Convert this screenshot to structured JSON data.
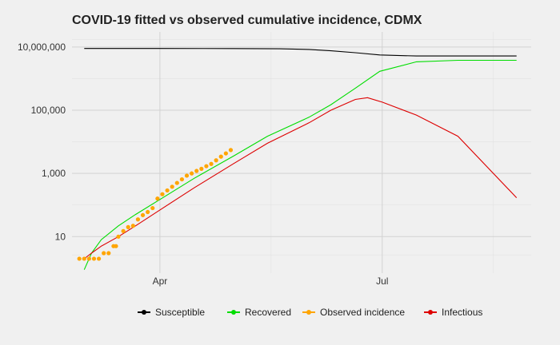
{
  "chart_data": {
    "type": "line",
    "title": "COVID-19 fitted vs observed cumulative incidence, CDMX",
    "xlabel": "",
    "ylabel": "",
    "y_scale": "log10",
    "ylim": [
      0.7,
      30000000
    ],
    "xlim": [
      "2020-02-25",
      "2020-08-31"
    ],
    "x_ticks": [
      {
        "date": "2020-04-01",
        "label": "Apr"
      },
      {
        "date": "2020-07-01",
        "label": "Jul"
      }
    ],
    "y_ticks": [
      {
        "value": 10,
        "label": "10"
      },
      {
        "value": 1000,
        "label": "1,000"
      },
      {
        "value": 100000,
        "label": "100,000"
      },
      {
        "value": 10000000,
        "label": "10,000,000"
      }
    ],
    "grid": true,
    "legend_position": "bottom",
    "series": [
      {
        "name": "Susceptible",
        "color": "#000000",
        "style": "line",
        "x": [
          "2020-03-01",
          "2020-04-01",
          "2020-05-01",
          "2020-05-20",
          "2020-06-01",
          "2020-06-10",
          "2020-06-20",
          "2020-06-30",
          "2020-07-15",
          "2020-08-01",
          "2020-08-25"
        ],
        "y": [
          9000000,
          9000000,
          8950000,
          8800000,
          8400000,
          7600000,
          6600000,
          5600000,
          5200000,
          5200000,
          5200000
        ]
      },
      {
        "name": "Recovered",
        "color": "#00dd00",
        "style": "line",
        "x": [
          "2020-03-01",
          "2020-03-04",
          "2020-03-08",
          "2020-03-15",
          "2020-03-22",
          "2020-04-01",
          "2020-04-15",
          "2020-05-01",
          "2020-05-15",
          "2020-06-01",
          "2020-06-10",
          "2020-06-20",
          "2020-06-30",
          "2020-07-15",
          "2020-08-01",
          "2020-08-25"
        ],
        "y": [
          0.9,
          3,
          8,
          22,
          50,
          150,
          700,
          3500,
          15000,
          60000,
          150000,
          500000,
          1700000,
          3400000,
          3800000,
          3800000
        ]
      },
      {
        "name": "Infectious",
        "color": "#dd0000",
        "style": "line",
        "x": [
          "2020-03-01",
          "2020-03-04",
          "2020-03-08",
          "2020-03-15",
          "2020-03-22",
          "2020-04-01",
          "2020-04-15",
          "2020-05-01",
          "2020-05-15",
          "2020-06-01",
          "2020-06-10",
          "2020-06-20",
          "2020-06-25",
          "2020-07-01",
          "2020-07-15",
          "2020-08-01",
          "2020-08-25"
        ],
        "y": [
          2,
          3,
          5,
          10,
          22,
          70,
          350,
          2000,
          9000,
          40000,
          100000,
          220000,
          250000,
          180000,
          70000,
          15000,
          170
        ]
      },
      {
        "name": "Observed incidence",
        "color": "#ffa500",
        "style": "points",
        "x": [
          "2020-02-28",
          "2020-03-01",
          "2020-03-03",
          "2020-03-05",
          "2020-03-07",
          "2020-03-09",
          "2020-03-11",
          "2020-03-13",
          "2020-03-14",
          "2020-03-15",
          "2020-03-17",
          "2020-03-19",
          "2020-03-21",
          "2020-03-23",
          "2020-03-25",
          "2020-03-27",
          "2020-03-29",
          "2020-03-31",
          "2020-04-02",
          "2020-04-04",
          "2020-04-06",
          "2020-04-08",
          "2020-04-10",
          "2020-04-12",
          "2020-04-14",
          "2020-04-16",
          "2020-04-18",
          "2020-04-20",
          "2020-04-22",
          "2020-04-24",
          "2020-04-26",
          "2020-04-28",
          "2020-04-30"
        ],
        "y": [
          2,
          2,
          2,
          2,
          2,
          3,
          3,
          5,
          5,
          10,
          15,
          20,
          22,
          35,
          48,
          60,
          80,
          160,
          220,
          290,
          380,
          500,
          650,
          850,
          1000,
          1200,
          1400,
          1700,
          2000,
          2600,
          3400,
          4300,
          5500
        ]
      }
    ]
  }
}
